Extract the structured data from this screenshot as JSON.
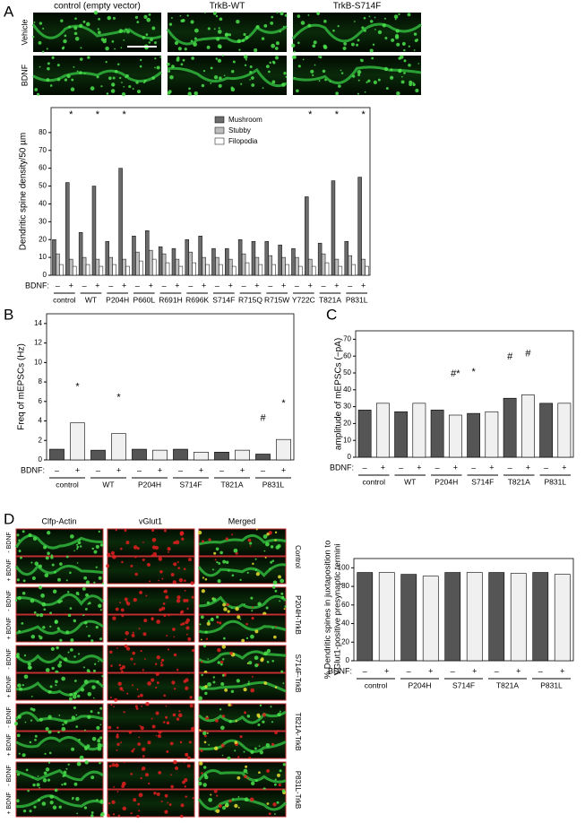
{
  "panel_labels": [
    "A",
    "B",
    "C",
    "D"
  ],
  "image_panels": [
    {
      "columns": [
        "control (empty vector)",
        "TrkB-WT",
        "TrkB-S714F"
      ],
      "rows": [
        "Vehicle",
        "BDNF"
      ]
    },
    {
      "columns": [
        "Clfp-Actin",
        "vGlut1",
        "Merged"
      ],
      "groups": [
        "Control",
        "P204H-TrkB",
        "S714F-TrkB",
        "T821A-TrkB",
        "P831L-TrkB"
      ],
      "rows": [
        "- BDNF",
        "+ BDNF"
      ]
    }
  ],
  "chart_data": [
    {
      "type": "bar",
      "ylabel": "Dendritic spine density/50 µm",
      "xlabel": "BDNF:",
      "groups": [
        "control",
        "WT",
        "P204H",
        "P660L",
        "R691H",
        "R696K",
        "S714F",
        "R715Q",
        "R715W",
        "Y722C",
        "T821A",
        "P831L"
      ],
      "categories": [
        "–",
        "+",
        "–",
        "+",
        "–",
        "+",
        "–",
        "+",
        "–",
        "+",
        "–",
        "+",
        "–",
        "+",
        "–",
        "+",
        "–",
        "+",
        "–",
        "+",
        "–",
        "+",
        "–",
        "+"
      ],
      "series": [
        {
          "name": "Mushroom",
          "color": "#6b6b6b",
          "values": [
            20,
            52,
            24,
            50,
            19,
            60,
            22,
            25,
            16,
            15,
            20,
            22,
            15,
            15,
            20,
            19,
            19,
            17,
            15,
            44,
            18,
            53,
            19,
            55
          ]
        },
        {
          "name": "Stubby",
          "color": "#bdbdbd",
          "values": [
            12,
            9,
            10,
            9,
            10,
            9,
            13,
            14,
            12,
            9,
            13,
            10,
            10,
            9,
            12,
            10,
            11,
            10,
            10,
            9,
            12,
            9,
            11,
            9
          ]
        },
        {
          "name": "Filopodia",
          "color": "#ffffff",
          "values": [
            6,
            5,
            6,
            5,
            6,
            5,
            8,
            9,
            7,
            5,
            7,
            6,
            6,
            5,
            7,
            6,
            6,
            6,
            5,
            5,
            7,
            5,
            6,
            5
          ]
        }
      ],
      "significance": [
        null,
        "*",
        null,
        "*",
        null,
        "*",
        null,
        null,
        null,
        null,
        null,
        null,
        null,
        null,
        null,
        null,
        null,
        null,
        null,
        "*",
        null,
        "*",
        null,
        "*"
      ],
      "ylim": [
        0,
        94
      ],
      "yticks": [
        0,
        10,
        20,
        30,
        40,
        50,
        60,
        70,
        80
      ],
      "legend": "upper center"
    },
    {
      "type": "bar",
      "ylabel": "Freq of mEPSCs (Hz)",
      "xlabel": "BDNF:",
      "groups": [
        "control",
        "WT",
        "P204H",
        "S714F",
        "T821A",
        "P831L"
      ],
      "categories": [
        "–",
        "+",
        "–",
        "+",
        "–",
        "+",
        "–",
        "+",
        "–",
        "+",
        "–",
        "+"
      ],
      "values": [
        1.1,
        3.8,
        1.0,
        2.7,
        1.1,
        1.0,
        1.1,
        0.8,
        0.8,
        1.0,
        0.6,
        2.1
      ],
      "bar_colors": [
        "#555555",
        "#f0f0f0"
      ],
      "significance": [
        null,
        "*",
        null,
        "*",
        null,
        null,
        null,
        null,
        null,
        null,
        "#",
        "*"
      ],
      "ylim": [
        0,
        15
      ],
      "yticks": [
        0,
        2,
        4,
        6,
        8,
        10,
        12,
        14
      ]
    },
    {
      "type": "bar",
      "ylabel": "amplitude of mEPSCs (−pA)",
      "xlabel": "BDNF:",
      "groups": [
        "control",
        "WT",
        "P204H",
        "S714F",
        "T821A",
        "P831L"
      ],
      "categories": [
        "–",
        "+",
        "–",
        "+",
        "–",
        "+",
        "–",
        "+",
        "–",
        "+",
        "–",
        "+"
      ],
      "values": [
        28,
        32,
        27,
        32,
        28,
        25,
        26,
        27,
        35,
        37,
        32,
        32
      ],
      "bar_colors": [
        "#555555",
        "#f0f0f0"
      ],
      "significance": [
        null,
        null,
        null,
        null,
        null,
        "#*",
        "*",
        null,
        "#",
        "#",
        null,
        null
      ],
      "ylim": [
        0,
        75
      ],
      "yticks": [
        0,
        10,
        20,
        30,
        40,
        50,
        60,
        70
      ]
    },
    {
      "type": "bar",
      "ylabel": [
        "% Dendritic spines in juxtaposition to",
        "VGlut1-positive presynaptic termini"
      ],
      "xlabel": "BDNF:",
      "groups": [
        "control",
        "P204H",
        "S714F",
        "T821A",
        "P831L"
      ],
      "categories": [
        "–",
        "+",
        "–",
        "+",
        "–",
        "+",
        "–",
        "+",
        "–",
        "+"
      ],
      "values": [
        95,
        95,
        93,
        91,
        95,
        95,
        95,
        94,
        95,
        93
      ],
      "bar_colors": [
        "#555555",
        "#f0f0f0"
      ],
      "ylim": [
        0,
        110
      ],
      "yticks": [
        0,
        20,
        40,
        60,
        80,
        100
      ]
    }
  ]
}
